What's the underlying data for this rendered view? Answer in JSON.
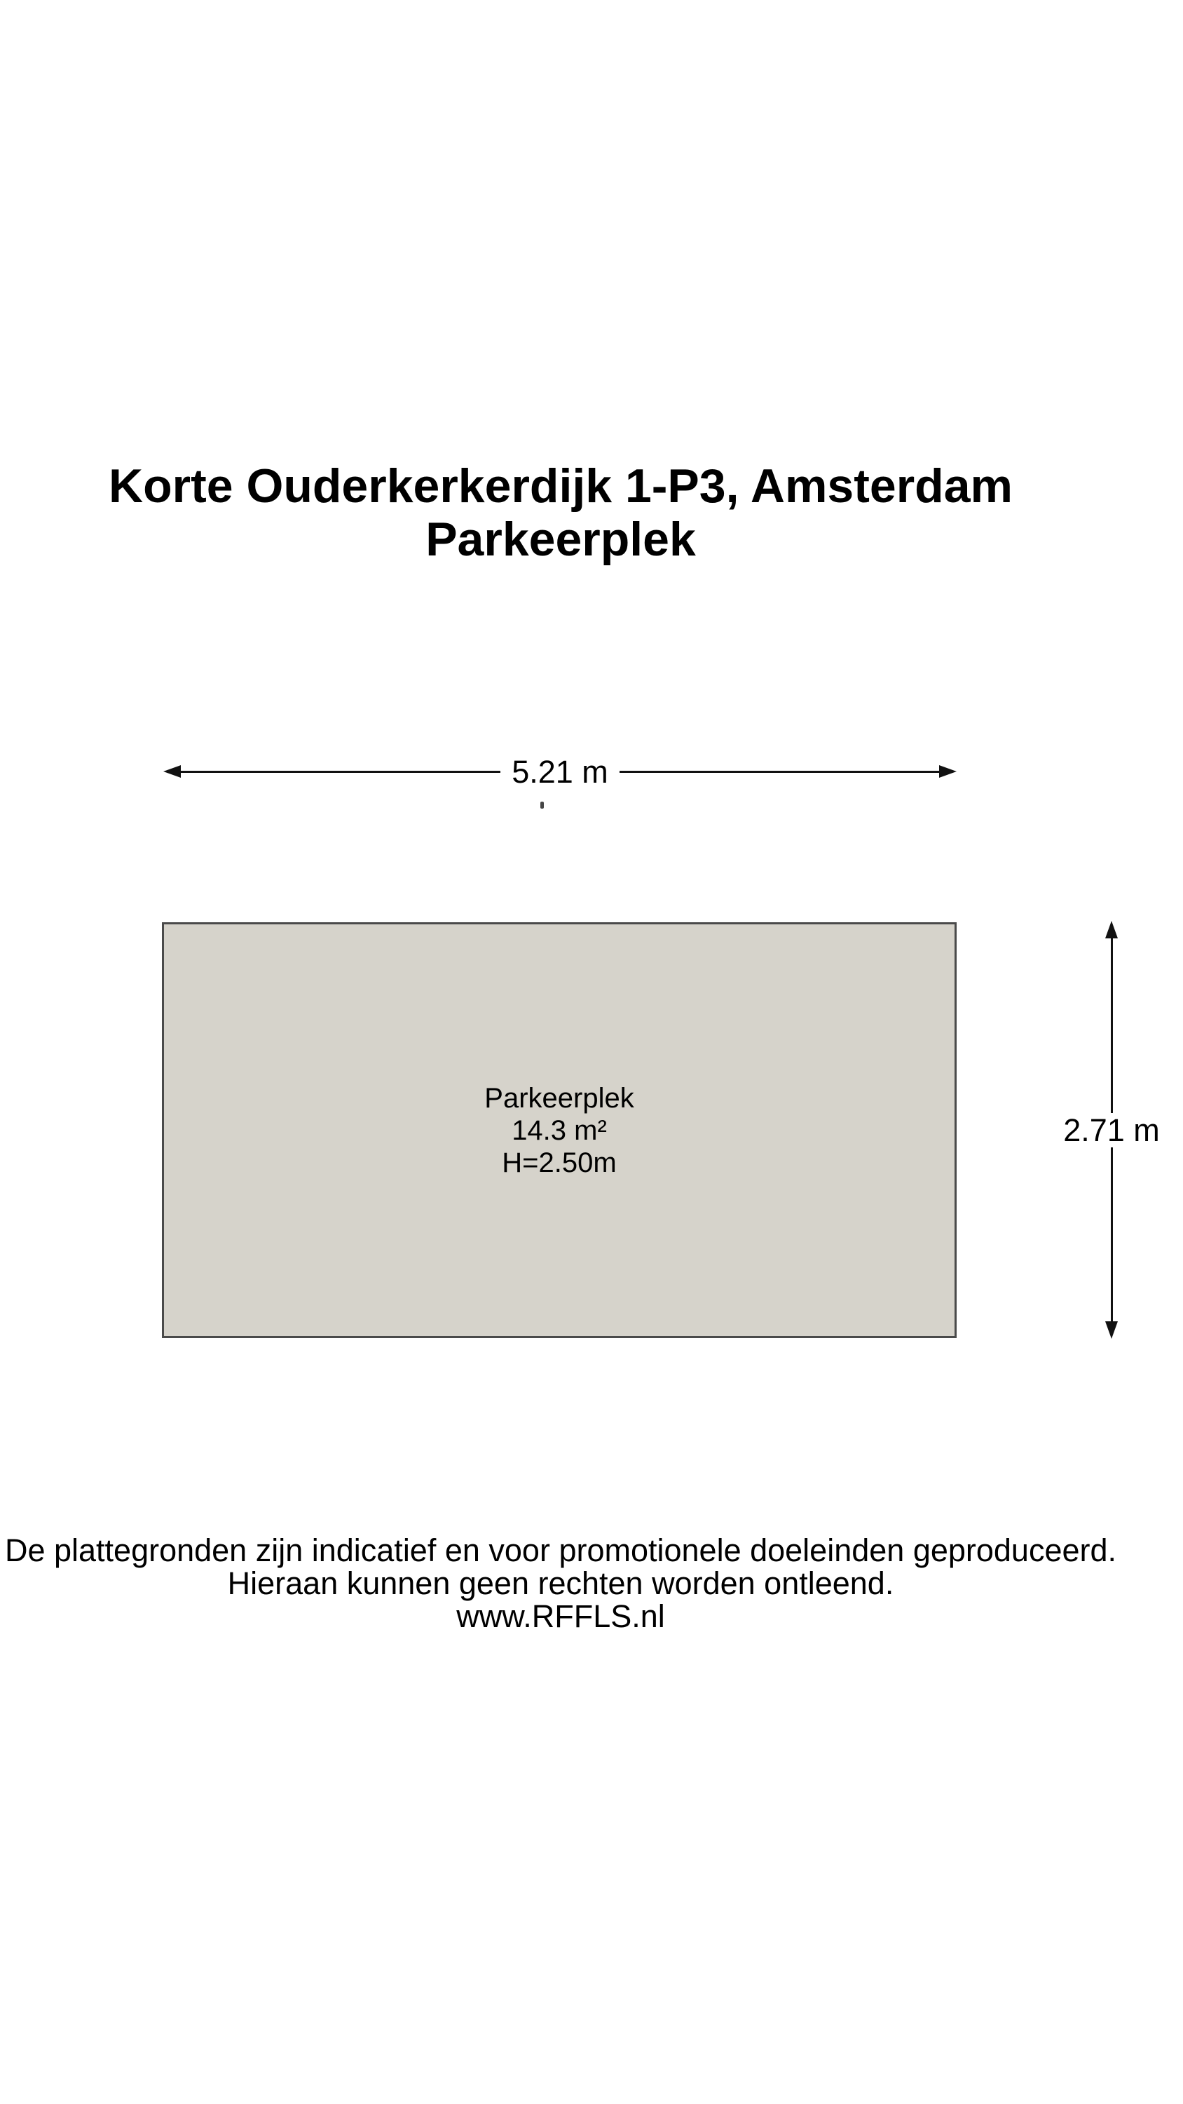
{
  "page": {
    "title_line1": "Korte Ouderkerkerdijk 1-P3, Amsterdam",
    "title_line2": "Parkeerplek"
  },
  "floorplan": {
    "width_dimension": {
      "label": "5.21 m"
    },
    "height_dimension": {
      "label": "2.71 m"
    },
    "room": {
      "name": "Parkeerplek",
      "area": "14.3 m²",
      "ceiling_height": "H=2.50m"
    },
    "colors": {
      "room_fill": "#d6d3cb",
      "room_border": "#4a4a4a",
      "dimension_line": "#111111",
      "text_color": "#000000"
    }
  },
  "footer": {
    "line1": "De plattegronden zijn indicatief en voor promotionele doeleinden geproduceerd.",
    "line2": "Hieraan kunnen geen rechten worden ontleend.",
    "line3": "www.RFFLS.nl"
  }
}
